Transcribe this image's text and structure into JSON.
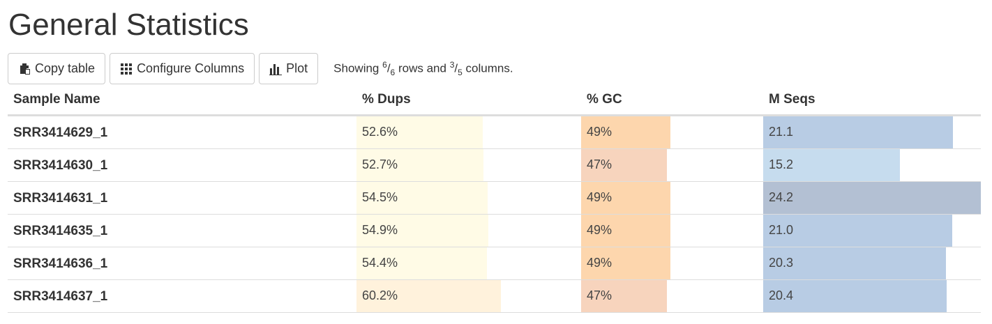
{
  "page": {
    "title": "General Statistics"
  },
  "toolbar": {
    "copy_label": "Copy table",
    "configure_label": "Configure Columns",
    "plot_label": "Plot",
    "status": {
      "prefix": "Showing",
      "rows_shown": "6",
      "rows_total": "6",
      "rows_word": "rows and",
      "cols_shown": "3",
      "cols_total": "5",
      "cols_word": "columns."
    }
  },
  "table": {
    "headers": [
      "Sample Name",
      "% Dups",
      "% GC",
      "M Seqs"
    ],
    "rows": [
      {
        "name": "SRR3414629_1",
        "dups": "52.6%",
        "gc": "49%",
        "mseqs": "21.1"
      },
      {
        "name": "SRR3414630_1",
        "dups": "52.7%",
        "gc": "47%",
        "mseqs": "15.2"
      },
      {
        "name": "SRR3414631_1",
        "dups": "54.5%",
        "gc": "49%",
        "mseqs": "24.2"
      },
      {
        "name": "SRR3414635_1",
        "dups": "54.9%",
        "gc": "49%",
        "mseqs": "21.0"
      },
      {
        "name": "SRR3414636_1",
        "dups": "54.4%",
        "gc": "49%",
        "mseqs": "20.3"
      },
      {
        "name": "SRR3414637_1",
        "dups": "60.2%",
        "gc": "47%",
        "mseqs": "20.4"
      }
    ],
    "bar_fill_fraction": {
      "dups": [
        0.526,
        0.527,
        0.545,
        0.549,
        0.544,
        0.602
      ],
      "gc": [
        0.49,
        0.47,
        0.49,
        0.49,
        0.49,
        0.47
      ],
      "mseqs": [
        0.872,
        0.628,
        1.0,
        0.868,
        0.839,
        0.843
      ]
    },
    "bar_colors": {
      "dups": [
        "#fffbe6",
        "#fffbe6",
        "#fffbe6",
        "#fffbe6",
        "#fffbe6",
        "#fff2dc"
      ],
      "gc": [
        "#fdd6ad",
        "#f7d4bd",
        "#fdd6ad",
        "#fdd6ad",
        "#fdd6ad",
        "#f7d4bd"
      ],
      "mseqs": [
        "#b8cce4",
        "#c6dcee",
        "#b3c0d3",
        "#b8cce4",
        "#b8cce4",
        "#b8cce4"
      ]
    }
  },
  "icons": {
    "copy": "copy-icon",
    "configure": "grid-icon",
    "plot": "bar-chart-icon"
  }
}
